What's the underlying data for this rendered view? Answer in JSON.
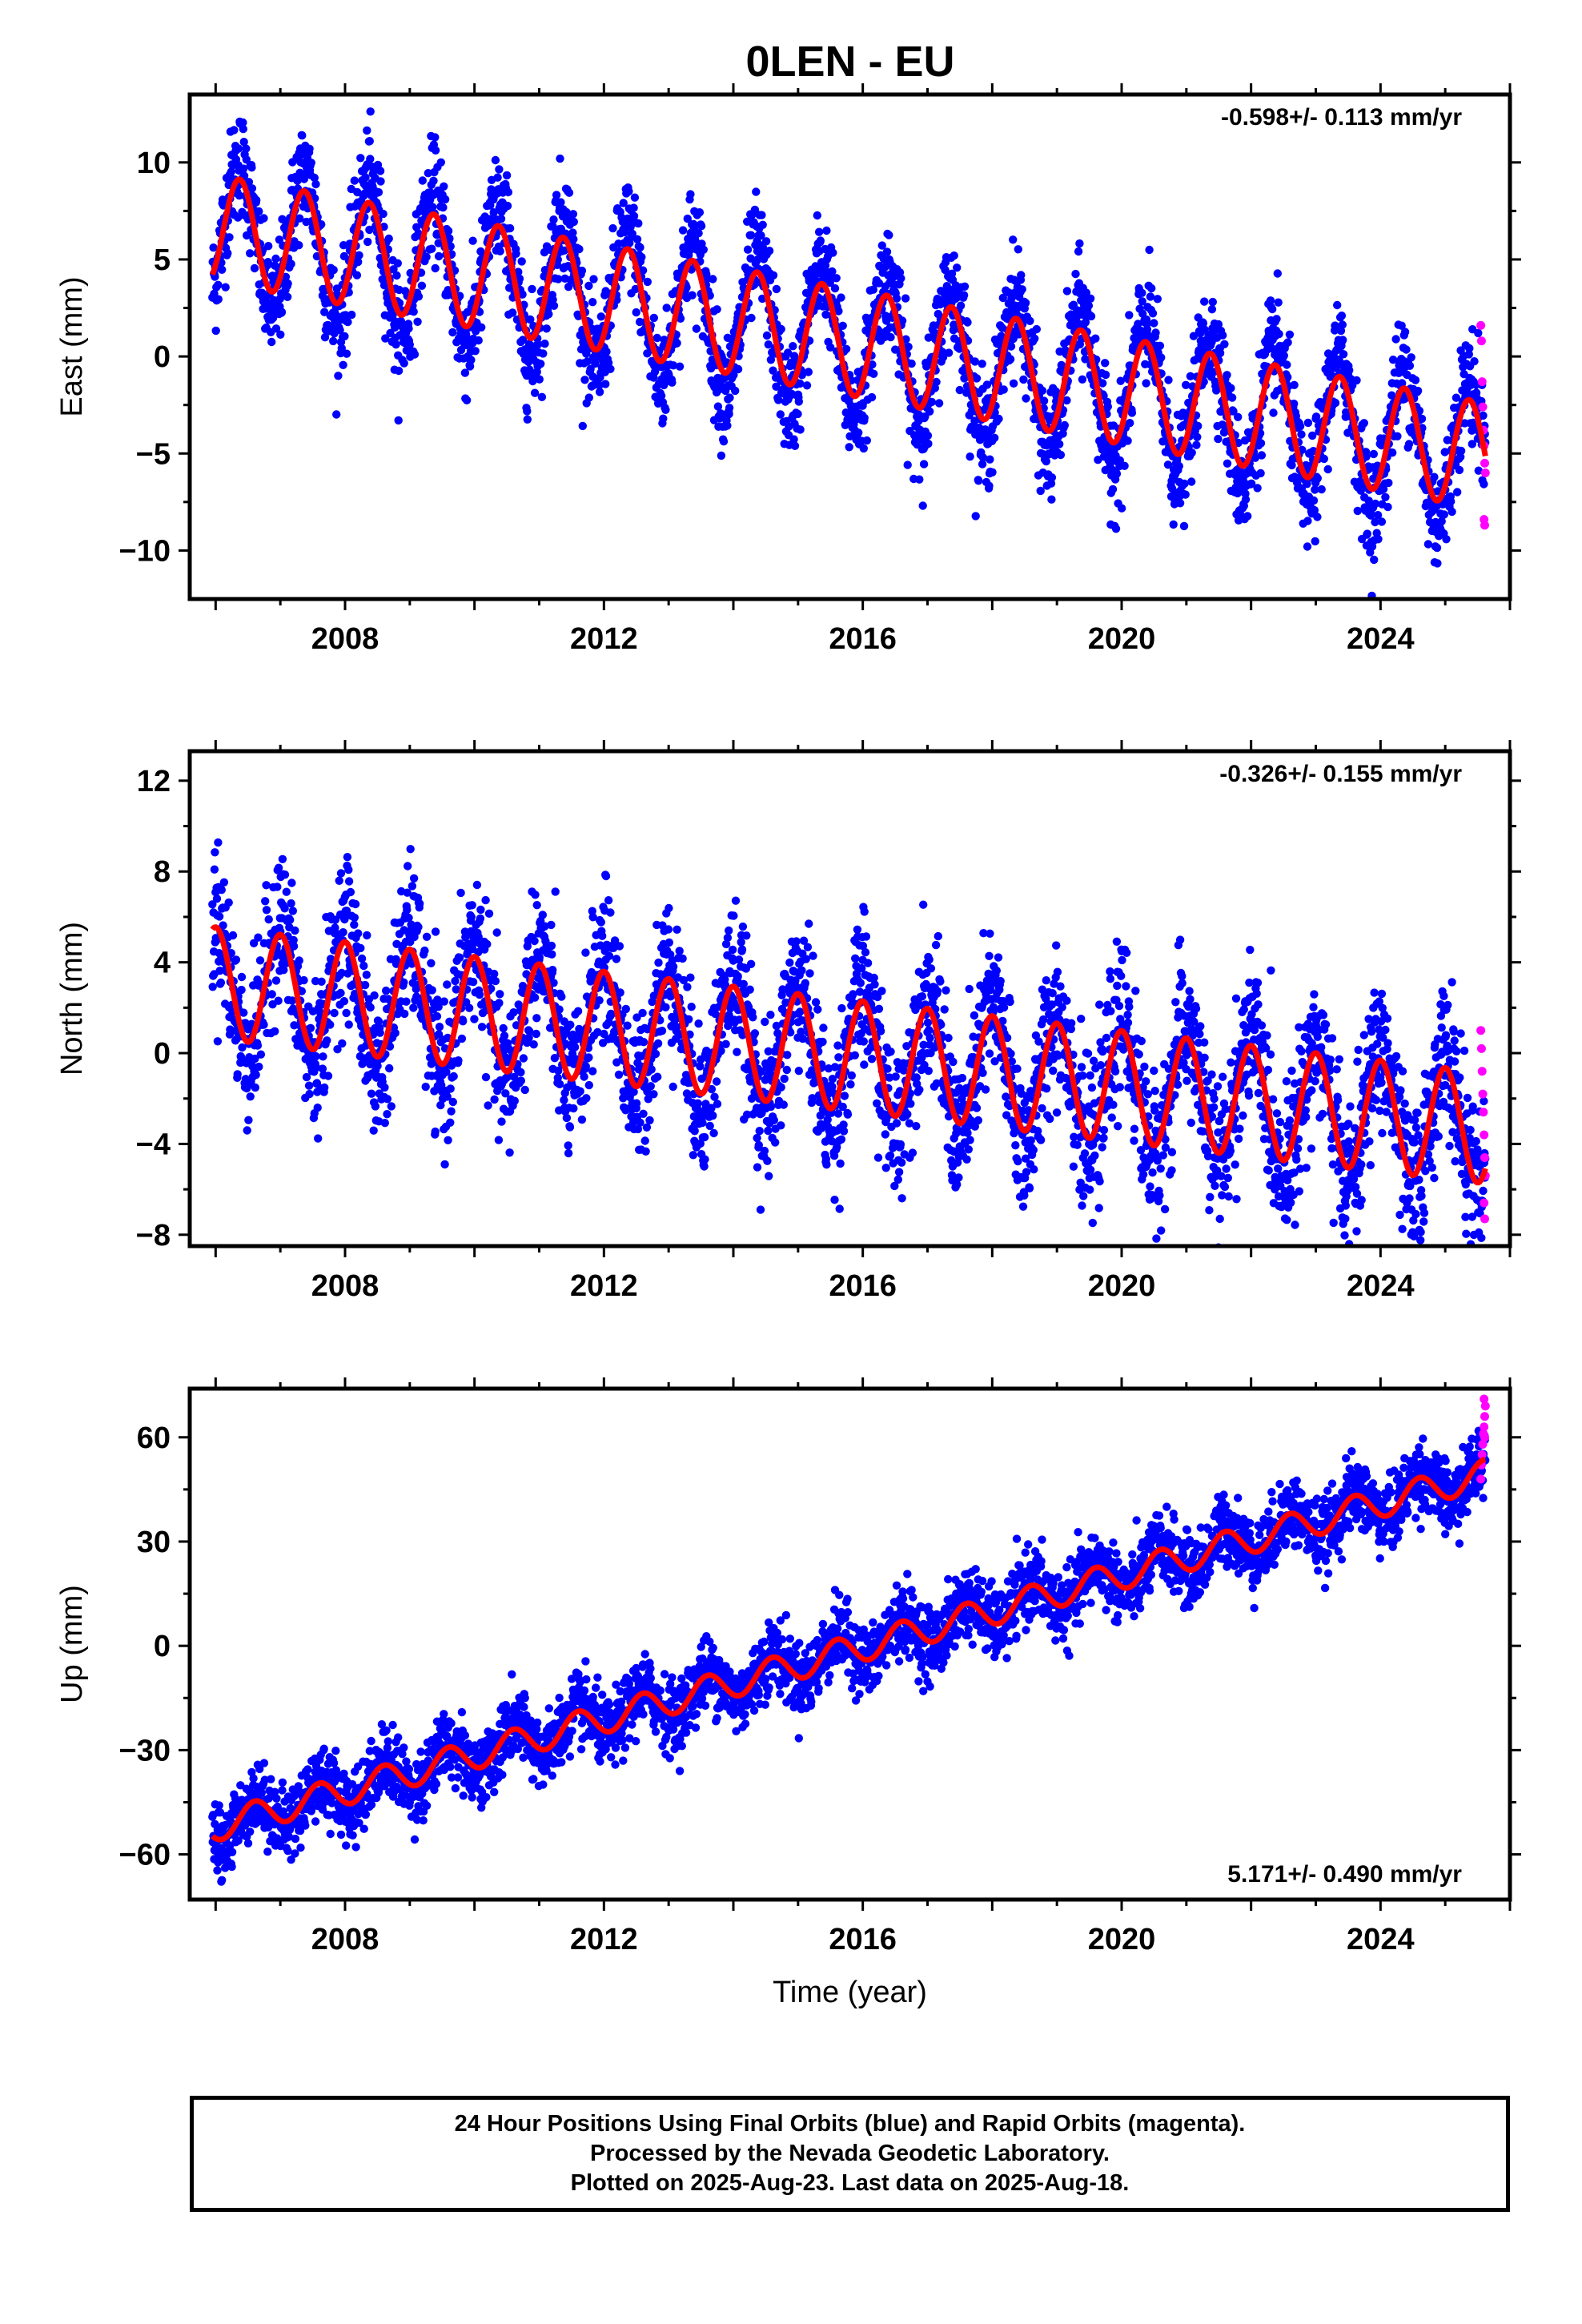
{
  "title": "0LEN - EU",
  "colors": {
    "final": "#0000ff",
    "rapid": "#ff00ff",
    "model": "#ff0000"
  },
  "footer": {
    "line1": "24 Hour Positions Using Final Orbits (blue) and Rapid Orbits (magenta).",
    "line2": "Processed by the Nevada Geodetic Laboratory.",
    "line3": "Plotted on 2025-Aug-23. Last data on 2025-Aug-18."
  },
  "chart_data": [
    {
      "type": "scatter",
      "id": "east",
      "ylabel": "East (mm)",
      "xlabel": "",
      "xlim": [
        2005.6,
        2026.0
      ],
      "ylim": [
        -12.5,
        13.5
      ],
      "xticks": [
        2008,
        2012,
        2016,
        2020,
        2024
      ],
      "yticks": [
        -10,
        -5,
        0,
        5,
        10
      ],
      "ytick_labels": [
        "−10",
        "−5",
        "0",
        "5",
        "10"
      ],
      "rate_label": "-0.598+/- 0.113 mm/yr",
      "rate_position": "top-right",
      "series": [
        {
          "name": "Final Orbits",
          "style": "points",
          "model": {
            "start": 2005.95,
            "end": 2025.62,
            "t0": 2006.0,
            "offset": 6.6,
            "slope": -0.598,
            "amp": 3.6,
            "phase_year": 2006.37,
            "noise": 1.4
          }
        },
        {
          "name": "Rapid Orbits",
          "style": "points",
          "values": [
            [
              2025.55,
              1.6
            ],
            [
              2025.56,
              0.8
            ],
            [
              2025.57,
              -1.3
            ],
            [
              2025.58,
              -2.6
            ],
            [
              2025.59,
              -3.8
            ],
            [
              2025.6,
              -4.6
            ],
            [
              2025.61,
              -5.5
            ],
            [
              2025.62,
              -6.0
            ],
            [
              2025.6,
              -8.4
            ],
            [
              2025.61,
              -8.7
            ]
          ]
        },
        {
          "name": "Model",
          "style": "line",
          "model": {
            "start": 2005.95,
            "end": 2025.62,
            "t0": 2006.0,
            "offset": 6.6,
            "slope": -0.598,
            "amp": 2.75,
            "phase_year": 2006.37
          }
        }
      ]
    },
    {
      "type": "scatter",
      "id": "north",
      "ylabel": "North (mm)",
      "xlabel": "",
      "xlim": [
        2005.6,
        2026.0
      ],
      "ylim": [
        -8.5,
        13.3
      ],
      "xticks": [
        2008,
        2012,
        2016,
        2020,
        2024
      ],
      "yticks": [
        -8,
        -4,
        0,
        4,
        8,
        12
      ],
      "ytick_labels": [
        "−8",
        "−4",
        "0",
        "4",
        "8",
        "12"
      ],
      "rate_label": "-0.326+/- 0.155 mm/yr",
      "rate_position": "top-right",
      "series": [
        {
          "name": "Final Orbits",
          "style": "points",
          "model": {
            "start": 2005.95,
            "end": 2025.62,
            "t0": 2006.0,
            "offset": 3.1,
            "slope": -0.326,
            "amp": 2.9,
            "phase_year": 2006.0,
            "noise": 1.6
          }
        },
        {
          "name": "Rapid Orbits",
          "style": "points",
          "values": [
            [
              2025.55,
              1.0
            ],
            [
              2025.56,
              0.2
            ],
            [
              2025.57,
              -0.8
            ],
            [
              2025.58,
              -1.8
            ],
            [
              2025.59,
              -2.6
            ],
            [
              2025.6,
              -3.6
            ],
            [
              2025.61,
              -4.6
            ],
            [
              2025.62,
              -5.4
            ],
            [
              2025.6,
              -6.6
            ],
            [
              2025.61,
              -7.3
            ]
          ]
        },
        {
          "name": "Model",
          "style": "line",
          "model": {
            "start": 2005.95,
            "end": 2025.62,
            "t0": 2006.0,
            "offset": 3.1,
            "slope": -0.326,
            "amp": 2.45,
            "phase_year": 2006.0
          }
        }
      ]
    },
    {
      "type": "scatter",
      "id": "up",
      "ylabel": "Up (mm)",
      "xlabel": "Time (year)",
      "xlim": [
        2005.6,
        2026.0
      ],
      "ylim": [
        -73,
        74
      ],
      "xticks": [
        2008,
        2012,
        2016,
        2020,
        2024
      ],
      "yticks": [
        -60,
        -30,
        0,
        30,
        60
      ],
      "ytick_labels": [
        "−60",
        "−30",
        "0",
        "30",
        "60"
      ],
      "rate_label": "5.171+/- 0.490 mm/yr",
      "rate_position": "bottom-right",
      "series": [
        {
          "name": "Final Orbits",
          "style": "points",
          "model": {
            "start": 2005.95,
            "end": 2025.62,
            "t0": 2006.0,
            "offset": -52.0,
            "slope": 5.171,
            "amp": 5.0,
            "phase_year": 2006.6,
            "noise": 5.0
          }
        },
        {
          "name": "Rapid Orbits",
          "style": "points",
          "values": [
            [
              2025.55,
              48
            ],
            [
              2025.56,
              52
            ],
            [
              2025.57,
              55
            ],
            [
              2025.58,
              58
            ],
            [
              2025.59,
              61
            ],
            [
              2025.6,
              63
            ],
            [
              2025.61,
              66
            ],
            [
              2025.62,
              69
            ],
            [
              2025.6,
              71
            ],
            [
              2025.61,
              60
            ]
          ]
        },
        {
          "name": "Model",
          "style": "line",
          "model": {
            "start": 2005.95,
            "end": 2025.62,
            "t0": 2006.0,
            "offset": -52.0,
            "slope": 5.171,
            "amp": 4.2,
            "phase_year": 2006.6
          }
        }
      ]
    }
  ]
}
